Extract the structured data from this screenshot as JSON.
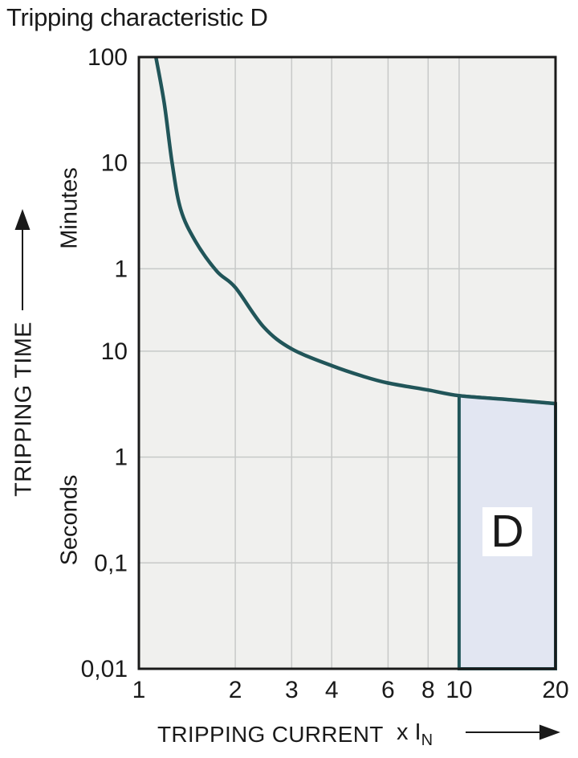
{
  "title": "Tripping characteristic D",
  "colors": {
    "background": "#ffffff",
    "plot_background": "#f0f0ee",
    "gridline": "#c7c9c8",
    "axis_border": "#1a1a1a",
    "curve": "#215559",
    "region_fill": "#e2e6f2",
    "region_border": "#215559",
    "text": "#1a1a1a",
    "region_label_background": "#ffffff"
  },
  "y_axis": {
    "label": "TRIPPING TIME",
    "unit_upper": "Minutes",
    "unit_lower": "Seconds"
  },
  "x_axis": {
    "label": "TRIPPING CURRENT",
    "multiplier_prefix": "x I",
    "multiplier_subscript": "N"
  },
  "region_label": "D",
  "chart_data": {
    "type": "line",
    "title": "Tripping characteristic D",
    "xlabel": "TRIPPING CURRENT (x IN)",
    "ylabel": "TRIPPING TIME",
    "x_scale": "log",
    "y_scale": "log",
    "grid": true,
    "xlim": [
      1,
      20
    ],
    "ylim_seconds": [
      0.01,
      6000
    ],
    "x_ticks": [
      {
        "value": 1,
        "label": "1"
      },
      {
        "value": 2,
        "label": "2"
      },
      {
        "value": 3,
        "label": "3"
      },
      {
        "value": 4,
        "label": "4"
      },
      {
        "value": 6,
        "label": "6"
      },
      {
        "value": 8,
        "label": "8"
      },
      {
        "value": 10,
        "label": "10"
      },
      {
        "value": 20,
        "label": "20"
      }
    ],
    "y_ticks": [
      {
        "value_seconds": 6000,
        "label": "100",
        "unit": "Minutes"
      },
      {
        "value_seconds": 600,
        "label": "10",
        "unit": "Minutes"
      },
      {
        "value_seconds": 60,
        "label": "1",
        "unit": "Minutes"
      },
      {
        "value_seconds": 10,
        "label": "10",
        "unit": "Seconds"
      },
      {
        "value_seconds": 1,
        "label": "1",
        "unit": "Seconds"
      },
      {
        "value_seconds": 0.1,
        "label": "0,1",
        "unit": "Seconds"
      },
      {
        "value_seconds": 0.01,
        "label": "0,01",
        "unit": "Seconds"
      }
    ],
    "series": [
      {
        "name": "Tripping characteristic D",
        "points_x_in_multiples_of_In_y_in_seconds": [
          [
            1.13,
            6000
          ],
          [
            1.2,
            2200
          ],
          [
            1.27,
            600
          ],
          [
            1.35,
            220
          ],
          [
            1.5,
            110
          ],
          [
            1.75,
            57
          ],
          [
            2,
            40
          ],
          [
            2.45,
            17
          ],
          [
            3,
            10.5
          ],
          [
            4,
            7.3
          ],
          [
            5,
            5.8
          ],
          [
            6,
            5.0
          ],
          [
            8,
            4.3
          ],
          [
            10,
            3.8
          ],
          [
            14,
            3.5
          ],
          [
            20,
            3.2
          ]
        ]
      }
    ],
    "shaded_region": {
      "label": "D",
      "x_from_times_In": 10,
      "x_to_times_In": 20,
      "time_bottom_seconds": 0.01,
      "time_top_seconds_at_10x": 3.8,
      "time_top_seconds_at_20x": 3.2
    }
  }
}
